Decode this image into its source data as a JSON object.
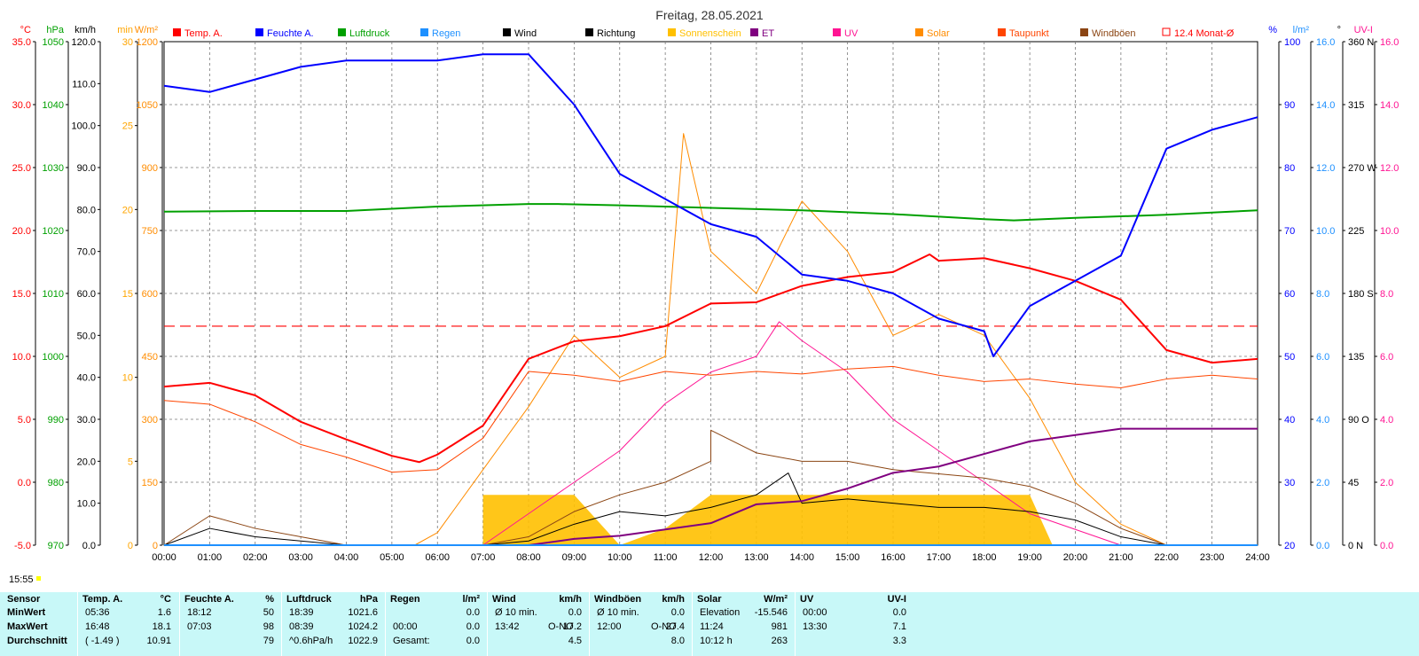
{
  "chart_data": {
    "type": "line",
    "title": "Freitag, 28.05.2021",
    "legend": [
      {
        "name": "Temp. A.",
        "color": "#ff0000"
      },
      {
        "name": "Feuchte A.",
        "color": "#0000ff"
      },
      {
        "name": "Luftdruck",
        "color": "#00a000"
      },
      {
        "name": "Regen",
        "color": "#1e90ff"
      },
      {
        "name": "Wind",
        "color": "#000000"
      },
      {
        "name": "Richtung",
        "color": "#000000"
      },
      {
        "name": "Sonnenschein",
        "color": "#ffc000"
      },
      {
        "name": "ET",
        "color": "#800080"
      },
      {
        "name": "UV",
        "color": "#ff1493"
      },
      {
        "name": "Solar",
        "color": "#ff8c00"
      },
      {
        "name": "Taupunkt",
        "color": "#ff4500"
      },
      {
        "name": "Windböen",
        "color": "#8b4513"
      },
      {
        "name": "12.4 Monat-Ø",
        "color": "#ff0000"
      }
    ],
    "x_ticks": [
      "00:00",
      "01:00",
      "02:00",
      "03:00",
      "04:00",
      "05:00",
      "06:00",
      "07:00",
      "08:00",
      "09:00",
      "10:00",
      "11:00",
      "12:00",
      "13:00",
      "14:00",
      "15:00",
      "16:00",
      "17:00",
      "18:00",
      "19:00",
      "20:00",
      "21:00",
      "22:00",
      "23:00",
      "24:00"
    ],
    "axes_left": [
      {
        "unit": "°C",
        "color": "#ff0000",
        "ticks": [
          "35.0",
          "30.0",
          "25.0",
          "20.0",
          "15.0",
          "10.0",
          "5.0",
          "0.0",
          "-5.0"
        ]
      },
      {
        "unit": "hPa",
        "color": "#00a000",
        "ticks": [
          "1050",
          "1040",
          "1030",
          "1020",
          "1010",
          "1000",
          "990",
          "980",
          "970"
        ]
      },
      {
        "unit": "km/h",
        "color": "#000000",
        "ticks": [
          "120.0",
          "110.0",
          "100.0",
          "90.0",
          "80.0",
          "70.0",
          "60.0",
          "50.0",
          "40.0",
          "30.0",
          "20.0",
          "10.0",
          "0.0"
        ]
      },
      {
        "unit": "min",
        "color": "#ffa500",
        "ticks": [
          "30",
          "25",
          "20",
          "15",
          "10",
          "5",
          "0"
        ]
      },
      {
        "unit": "W/m²",
        "color": "#ff8c00",
        "ticks": [
          "1200",
          "1050",
          "900",
          "750",
          "600",
          "450",
          "300",
          "150",
          "0"
        ]
      }
    ],
    "axes_right": [
      {
        "unit": "%",
        "color": "#0000ff",
        "ticks": [
          "100",
          "90",
          "80",
          "70",
          "60",
          "50",
          "40",
          "30",
          "20"
        ]
      },
      {
        "unit": "l/m²",
        "color": "#1e90ff",
        "ticks": [
          "16.0",
          "14.0",
          "12.0",
          "10.0",
          "8.0",
          "6.0",
          "4.0",
          "2.0",
          "0.0"
        ]
      },
      {
        "unit": "°",
        "color": "#000000",
        "ticks": [
          "360 N",
          "315",
          "270 W",
          "225",
          "180 S",
          "135",
          "90 O",
          "45",
          "0 N"
        ]
      },
      {
        "unit": "UV-I",
        "color": "#ff1493",
        "ticks": [
          "16.0",
          "14.0",
          "12.0",
          "10.0",
          "8.0",
          "6.0",
          "4.0",
          "2.0",
          "0.0"
        ]
      }
    ],
    "ylim_temp": [
      -5,
      35
    ],
    "month_avg_temp": 12.4,
    "series": [
      {
        "name": "Temp. A.",
        "unit": "°C",
        "x": [
          "00:00",
          "01:00",
          "02:00",
          "03:00",
          "04:00",
          "05:00",
          "05:36",
          "06:00",
          "07:00",
          "08:00",
          "09:00",
          "10:00",
          "11:00",
          "12:00",
          "13:00",
          "14:00",
          "15:00",
          "16:00",
          "16:48",
          "17:00",
          "18:00",
          "19:00",
          "20:00",
          "21:00",
          "22:00",
          "23:00",
          "24:00"
        ],
        "values": [
          7.6,
          7.9,
          6.9,
          4.8,
          3.4,
          2.1,
          1.6,
          2.2,
          4.5,
          9.8,
          11.2,
          11.6,
          12.4,
          14.2,
          14.3,
          15.6,
          16.3,
          16.7,
          18.1,
          17.6,
          17.8,
          17.0,
          16.0,
          14.5,
          10.5,
          9.5,
          9.8
        ]
      },
      {
        "name": "Feuchte A.",
        "unit": "%",
        "x": [
          "00:00",
          "01:00",
          "02:00",
          "03:00",
          "04:00",
          "05:00",
          "06:00",
          "07:00",
          "07:03",
          "08:00",
          "09:00",
          "10:00",
          "11:00",
          "12:00",
          "13:00",
          "14:00",
          "15:00",
          "16:00",
          "17:00",
          "18:00",
          "18:12",
          "19:00",
          "20:00",
          "21:00",
          "22:00",
          "23:00",
          "24:00"
        ],
        "values": [
          93,
          92,
          94,
          96,
          97,
          97,
          97,
          98,
          98,
          98,
          90,
          79,
          75,
          71,
          69,
          63,
          62,
          60,
          56,
          54,
          50,
          58,
          62,
          66,
          83,
          86,
          88
        ]
      },
      {
        "name": "Luftdruck",
        "unit": "hPa",
        "x": [
          "00:00",
          "02:00",
          "04:00",
          "06:00",
          "08:00",
          "08:39",
          "10:00",
          "12:00",
          "14:00",
          "16:00",
          "18:00",
          "18:39",
          "20:00",
          "22:00",
          "24:00"
        ],
        "values": [
          1023.0,
          1023.1,
          1023.1,
          1023.8,
          1024.2,
          1024.2,
          1024.0,
          1023.6,
          1023.2,
          1022.6,
          1021.8,
          1021.6,
          1022.0,
          1022.5,
          1023.2
        ]
      },
      {
        "name": "Taupunkt",
        "unit": "°C",
        "x": [
          "00:00",
          "01:00",
          "02:00",
          "03:00",
          "04:00",
          "05:00",
          "06:00",
          "07:00",
          "08:00",
          "09:00",
          "10:00",
          "11:00",
          "12:00",
          "13:00",
          "14:00",
          "15:00",
          "16:00",
          "17:00",
          "18:00",
          "19:00",
          "20:00",
          "21:00",
          "22:00",
          "23:00",
          "24:00"
        ],
        "values": [
          6.5,
          6.2,
          4.8,
          3.0,
          2.0,
          0.8,
          1.0,
          3.5,
          8.8,
          8.5,
          8.0,
          8.8,
          8.5,
          8.8,
          8.6,
          9.0,
          9.2,
          8.5,
          8.0,
          8.2,
          7.8,
          7.5,
          8.2,
          8.5,
          8.2
        ]
      },
      {
        "name": "Solar",
        "unit": "W/m²",
        "x": [
          "05:30",
          "06:00",
          "07:00",
          "08:00",
          "09:00",
          "10:00",
          "11:00",
          "11:24",
          "12:00",
          "13:00",
          "14:00",
          "15:00",
          "16:00",
          "17:00",
          "18:00",
          "19:00",
          "20:00",
          "21:00",
          "22:00"
        ],
        "values": [
          0,
          30,
          180,
          330,
          500,
          400,
          450,
          981,
          700,
          600,
          820,
          700,
          500,
          550,
          500,
          350,
          150,
          50,
          0
        ]
      },
      {
        "name": "UV",
        "unit": "UV-I",
        "x": [
          "07:00",
          "08:00",
          "09:00",
          "10:00",
          "11:00",
          "12:00",
          "13:00",
          "13:30",
          "14:00",
          "15:00",
          "16:00",
          "17:00",
          "18:00",
          "19:00",
          "20:00",
          "21:00"
        ],
        "values": [
          0.0,
          1.0,
          2.0,
          3.0,
          4.5,
          5.5,
          6.0,
          7.1,
          6.5,
          5.5,
          4.0,
          3.0,
          2.0,
          1.0,
          0.5,
          0.0
        ]
      },
      {
        "name": "Wind",
        "unit": "km/h",
        "x": [
          "00:00",
          "01:00",
          "02:00",
          "03:00",
          "04:00",
          "05:00",
          "06:00",
          "07:00",
          "08:00",
          "09:00",
          "10:00",
          "11:00",
          "12:00",
          "13:00",
          "13:42",
          "14:00",
          "15:00",
          "16:00",
          "17:00",
          "18:00",
          "19:00",
          "20:00",
          "21:00",
          "22:00",
          "23:00",
          "24:00"
        ],
        "values": [
          0,
          4,
          2,
          1,
          0,
          0,
          0,
          0,
          1,
          5,
          8,
          7,
          9,
          12,
          17.2,
          10,
          11,
          10,
          9,
          9,
          8,
          6,
          2,
          0,
          0,
          0
        ]
      },
      {
        "name": "Windböen",
        "unit": "km/h",
        "x": [
          "00:00",
          "01:00",
          "02:00",
          "03:00",
          "04:00",
          "05:00",
          "06:00",
          "07:00",
          "08:00",
          "09:00",
          "10:00",
          "11:00",
          "12:00",
          "12:00",
          "13:00",
          "14:00",
          "15:00",
          "16:00",
          "17:00",
          "18:00",
          "19:00",
          "20:00",
          "21:00",
          "22:00",
          "23:00",
          "24:00"
        ],
        "values": [
          0,
          7,
          4,
          2,
          0,
          0,
          0,
          0,
          2,
          8,
          12,
          15,
          20,
          27.4,
          22,
          20,
          20,
          18,
          17,
          16,
          14,
          10,
          4,
          0,
          0,
          0
        ]
      },
      {
        "name": "ET",
        "unit": "l/m²",
        "x": [
          "08:00",
          "09:00",
          "10:00",
          "11:00",
          "12:00",
          "13:00",
          "14:00",
          "15:00",
          "16:00",
          "17:00",
          "18:00",
          "19:00",
          "20:00",
          "21:00",
          "24:00"
        ],
        "values": [
          0.0,
          0.2,
          0.3,
          0.5,
          0.7,
          1.3,
          1.4,
          1.8,
          2.3,
          2.5,
          2.9,
          3.3,
          3.5,
          3.7,
          3.7
        ]
      },
      {
        "name": "Regen",
        "unit": "l/m²",
        "x": [
          "00:00",
          "24:00"
        ],
        "values": [
          0.0,
          0.0
        ]
      },
      {
        "name": "Sonnenschein",
        "unit": "min",
        "x": [
          "07:00",
          "08:00",
          "09:00",
          "10:00",
          "11:00",
          "12:00",
          "13:00",
          "14:00",
          "15:00",
          "16:00",
          "17:00",
          "18:00",
          "19:00",
          "19:30"
        ],
        "values": [
          3,
          3,
          3,
          0,
          1,
          3,
          3,
          3,
          3,
          3,
          3,
          3,
          3,
          0
        ]
      }
    ]
  },
  "time_label": "15:55",
  "stats": {
    "rows": [
      "Sensor",
      "MinWert",
      "MaxWert",
      "Durchschnitt"
    ],
    "temp": {
      "header": "Temp. A.",
      "unit": "°C",
      "min_time": "05:36",
      "min": "1.6",
      "max_time": "16:48",
      "max": "18.1",
      "avg_note": "( -1.49 )",
      "avg": "10.91"
    },
    "hum": {
      "header": "Feuchte A.",
      "unit": "%",
      "min_time": "18:12",
      "min": "50",
      "max_time": "07:03",
      "max": "98",
      "avg": "79"
    },
    "press": {
      "header": "Luftdruck",
      "unit": "hPa",
      "min_time": "18:39",
      "min": "1021.6",
      "max_time": "08:39",
      "max": "1024.2",
      "avg_note": "^0.6hPa/h",
      "avg": "1022.9"
    },
    "rain": {
      "header": "Regen",
      "unit": "l/m²",
      "min": "0.0",
      "max_time": "00:00",
      "max": "0.0",
      "avg_label": "Gesamt:",
      "avg": "0.0"
    },
    "wind": {
      "header": "Wind",
      "unit": "km/h",
      "min_label": "Ø 10 min.",
      "min": "0.0",
      "max_time": "13:42",
      "max_dir": "O-NO",
      "max": "17.2",
      "avg": "4.5"
    },
    "gust": {
      "header": "Windböen",
      "unit": "km/h",
      "min_label": "Ø 10 min.",
      "min": "0.0",
      "max_time": "12:00",
      "max_dir": "O-NO",
      "max": "27.4",
      "avg": "8.0"
    },
    "solar": {
      "header": "Solar",
      "unit": "W/m²",
      "min_label": "Elevation",
      "min": "-15.546",
      "max_time": "11:24",
      "max": "981",
      "avg_label": "10:12 h",
      "avg": "263"
    },
    "uv": {
      "header": "UV",
      "unit": "UV-I",
      "min_time": "00:00",
      "min": "0.0",
      "max_time": "13:30",
      "max": "7.1",
      "avg": "3.3"
    }
  }
}
